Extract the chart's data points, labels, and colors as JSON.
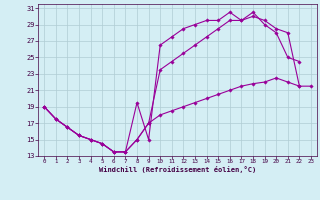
{
  "xlabel": "Windchill (Refroidissement éolien,°C)",
  "background_color": "#d4eef4",
  "grid_color": "#b0ccd4",
  "line_color": "#990099",
  "xlim": [
    -0.5,
    23.5
  ],
  "ylim": [
    13,
    31.5
  ],
  "yticks": [
    13,
    15,
    17,
    19,
    21,
    23,
    25,
    27,
    29,
    31
  ],
  "xticks": [
    0,
    1,
    2,
    3,
    4,
    5,
    6,
    7,
    8,
    9,
    10,
    11,
    12,
    13,
    14,
    15,
    16,
    17,
    18,
    19,
    20,
    21,
    22,
    23
  ],
  "line1_x": [
    0,
    1,
    2,
    3,
    4,
    5,
    6,
    7,
    8,
    9,
    10,
    11,
    12,
    13,
    14,
    15,
    16,
    17,
    18,
    19,
    20,
    21,
    22
  ],
  "line1_y": [
    19,
    17.5,
    16.5,
    15.5,
    15.0,
    14.5,
    13.5,
    13.5,
    19.5,
    15.0,
    26.5,
    27.5,
    28.5,
    29.0,
    29.5,
    29.5,
    30.5,
    29.5,
    30.5,
    29.0,
    28.0,
    25.0,
    24.5
  ],
  "line2_x": [
    0,
    1,
    2,
    3,
    4,
    5,
    6,
    7,
    8,
    9,
    10,
    11,
    12,
    13,
    14,
    15,
    16,
    17,
    18,
    19,
    20,
    21,
    22
  ],
  "line2_y": [
    19,
    17.5,
    16.5,
    15.5,
    15.0,
    14.5,
    13.5,
    13.5,
    15.0,
    17.0,
    23.5,
    24.5,
    25.5,
    26.5,
    27.5,
    28.5,
    29.5,
    29.5,
    30.0,
    29.5,
    28.5,
    28.0,
    21.5
  ],
  "line3_x": [
    0,
    1,
    2,
    3,
    4,
    5,
    6,
    7,
    8,
    9,
    10,
    11,
    12,
    13,
    14,
    15,
    16,
    17,
    18,
    19,
    20,
    21,
    22,
    23
  ],
  "line3_y": [
    19,
    17.5,
    16.5,
    15.5,
    15.0,
    14.5,
    13.5,
    13.5,
    15.0,
    17.0,
    18.0,
    18.5,
    19.0,
    19.5,
    20.0,
    20.5,
    21.0,
    21.5,
    21.8,
    22.0,
    22.5,
    22.0,
    21.5,
    21.5
  ]
}
